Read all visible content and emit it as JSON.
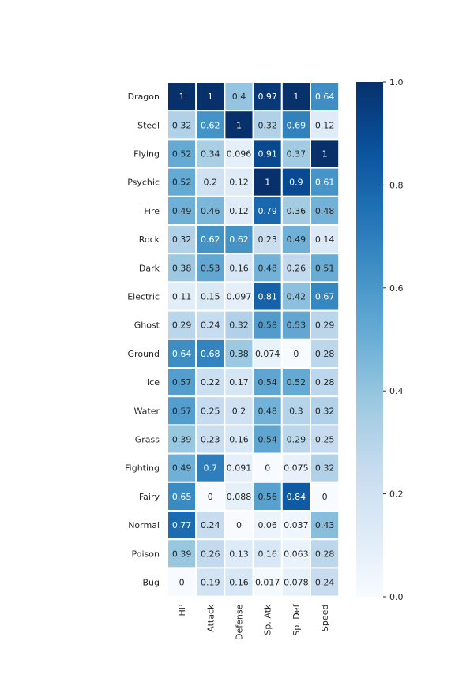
{
  "chart_data": {
    "type": "heatmap",
    "rows": [
      "Dragon",
      "Steel",
      "Flying",
      "Psychic",
      "Fire",
      "Rock",
      "Dark",
      "Electric",
      "Ghost",
      "Ground",
      "Ice",
      "Water",
      "Grass",
      "Fighting",
      "Fairy",
      "Normal",
      "Poison",
      "Bug"
    ],
    "columns": [
      "HP",
      "Attack",
      "Defense",
      "Sp. Atk",
      "Sp. Def",
      "Speed"
    ],
    "values": [
      [
        1,
        1,
        0.4,
        0.97,
        1,
        0.64
      ],
      [
        0.32,
        0.62,
        1,
        0.32,
        0.69,
        0.12
      ],
      [
        0.52,
        0.34,
        0.096,
        0.91,
        0.37,
        1
      ],
      [
        0.52,
        0.2,
        0.12,
        1,
        0.9,
        0.61
      ],
      [
        0.49,
        0.46,
        0.12,
        0.79,
        0.36,
        0.48
      ],
      [
        0.32,
        0.62,
        0.62,
        0.23,
        0.49,
        0.14
      ],
      [
        0.38,
        0.53,
        0.16,
        0.48,
        0.26,
        0.51
      ],
      [
        0.11,
        0.15,
        0.097,
        0.81,
        0.42,
        0.67
      ],
      [
        0.29,
        0.24,
        0.32,
        0.58,
        0.53,
        0.29
      ],
      [
        0.64,
        0.68,
        0.38,
        0.074,
        0,
        0.28
      ],
      [
        0.57,
        0.22,
        0.17,
        0.54,
        0.52,
        0.28
      ],
      [
        0.57,
        0.25,
        0.2,
        0.48,
        0.3,
        0.32
      ],
      [
        0.39,
        0.23,
        0.16,
        0.54,
        0.29,
        0.25
      ],
      [
        0.49,
        0.7,
        0.091,
        0,
        0.075,
        0.32
      ],
      [
        0.65,
        0,
        0.088,
        0.56,
        0.84,
        0
      ],
      [
        0.77,
        0.24,
        0,
        0.06,
        0.037,
        0.43
      ],
      [
        0.39,
        0.26,
        0.13,
        0.16,
        0.063,
        0.28
      ],
      [
        0,
        0.19,
        0.16,
        0.017,
        0.078,
        0.24
      ]
    ],
    "value_labels": [
      [
        "1",
        "1",
        "0.4",
        "0.97",
        "1",
        "0.64"
      ],
      [
        "0.32",
        "0.62",
        "1",
        "0.32",
        "0.69",
        "0.12"
      ],
      [
        "0.52",
        "0.34",
        "0.096",
        "0.91",
        "0.37",
        "1"
      ],
      [
        "0.52",
        "0.2",
        "0.12",
        "1",
        "0.9",
        "0.61"
      ],
      [
        "0.49",
        "0.46",
        "0.12",
        "0.79",
        "0.36",
        "0.48"
      ],
      [
        "0.32",
        "0.62",
        "0.62",
        "0.23",
        "0.49",
        "0.14"
      ],
      [
        "0.38",
        "0.53",
        "0.16",
        "0.48",
        "0.26",
        "0.51"
      ],
      [
        "0.11",
        "0.15",
        "0.097",
        "0.81",
        "0.42",
        "0.67"
      ],
      [
        "0.29",
        "0.24",
        "0.32",
        "0.58",
        "0.53",
        "0.29"
      ],
      [
        "0.64",
        "0.68",
        "0.38",
        "0.074",
        "0",
        "0.28"
      ],
      [
        "0.57",
        "0.22",
        "0.17",
        "0.54",
        "0.52",
        "0.28"
      ],
      [
        "0.57",
        "0.25",
        "0.2",
        "0.48",
        "0.3",
        "0.32"
      ],
      [
        "0.39",
        "0.23",
        "0.16",
        "0.54",
        "0.29",
        "0.25"
      ],
      [
        "0.49",
        "0.7",
        "0.091",
        "0",
        "0.075",
        "0.32"
      ],
      [
        "0.65",
        "0",
        "0.088",
        "0.56",
        "0.84",
        "0"
      ],
      [
        "0.77",
        "0.24",
        "0",
        "0.06",
        "0.037",
        "0.43"
      ],
      [
        "0.39",
        "0.26",
        "0.13",
        "0.16",
        "0.063",
        "0.28"
      ],
      [
        "0",
        "0.19",
        "0.16",
        "0.017",
        "0.078",
        "0.24"
      ]
    ],
    "colorbar": {
      "range": [
        0,
        1
      ],
      "tick_values": [
        0,
        0.2,
        0.4,
        0.6,
        0.8,
        1
      ],
      "tick_labels": [
        "0.0",
        "0.2",
        "0.4",
        "0.6",
        "0.8",
        "1.0"
      ]
    },
    "colormap": "Blues",
    "colors": {
      "low": "#f7fbff",
      "high": "#08306b",
      "cell_border": "#ffffff",
      "text_dark": "#262626",
      "text_light": "#ffffff"
    },
    "title": "",
    "xlabel": "",
    "ylabel": ""
  }
}
